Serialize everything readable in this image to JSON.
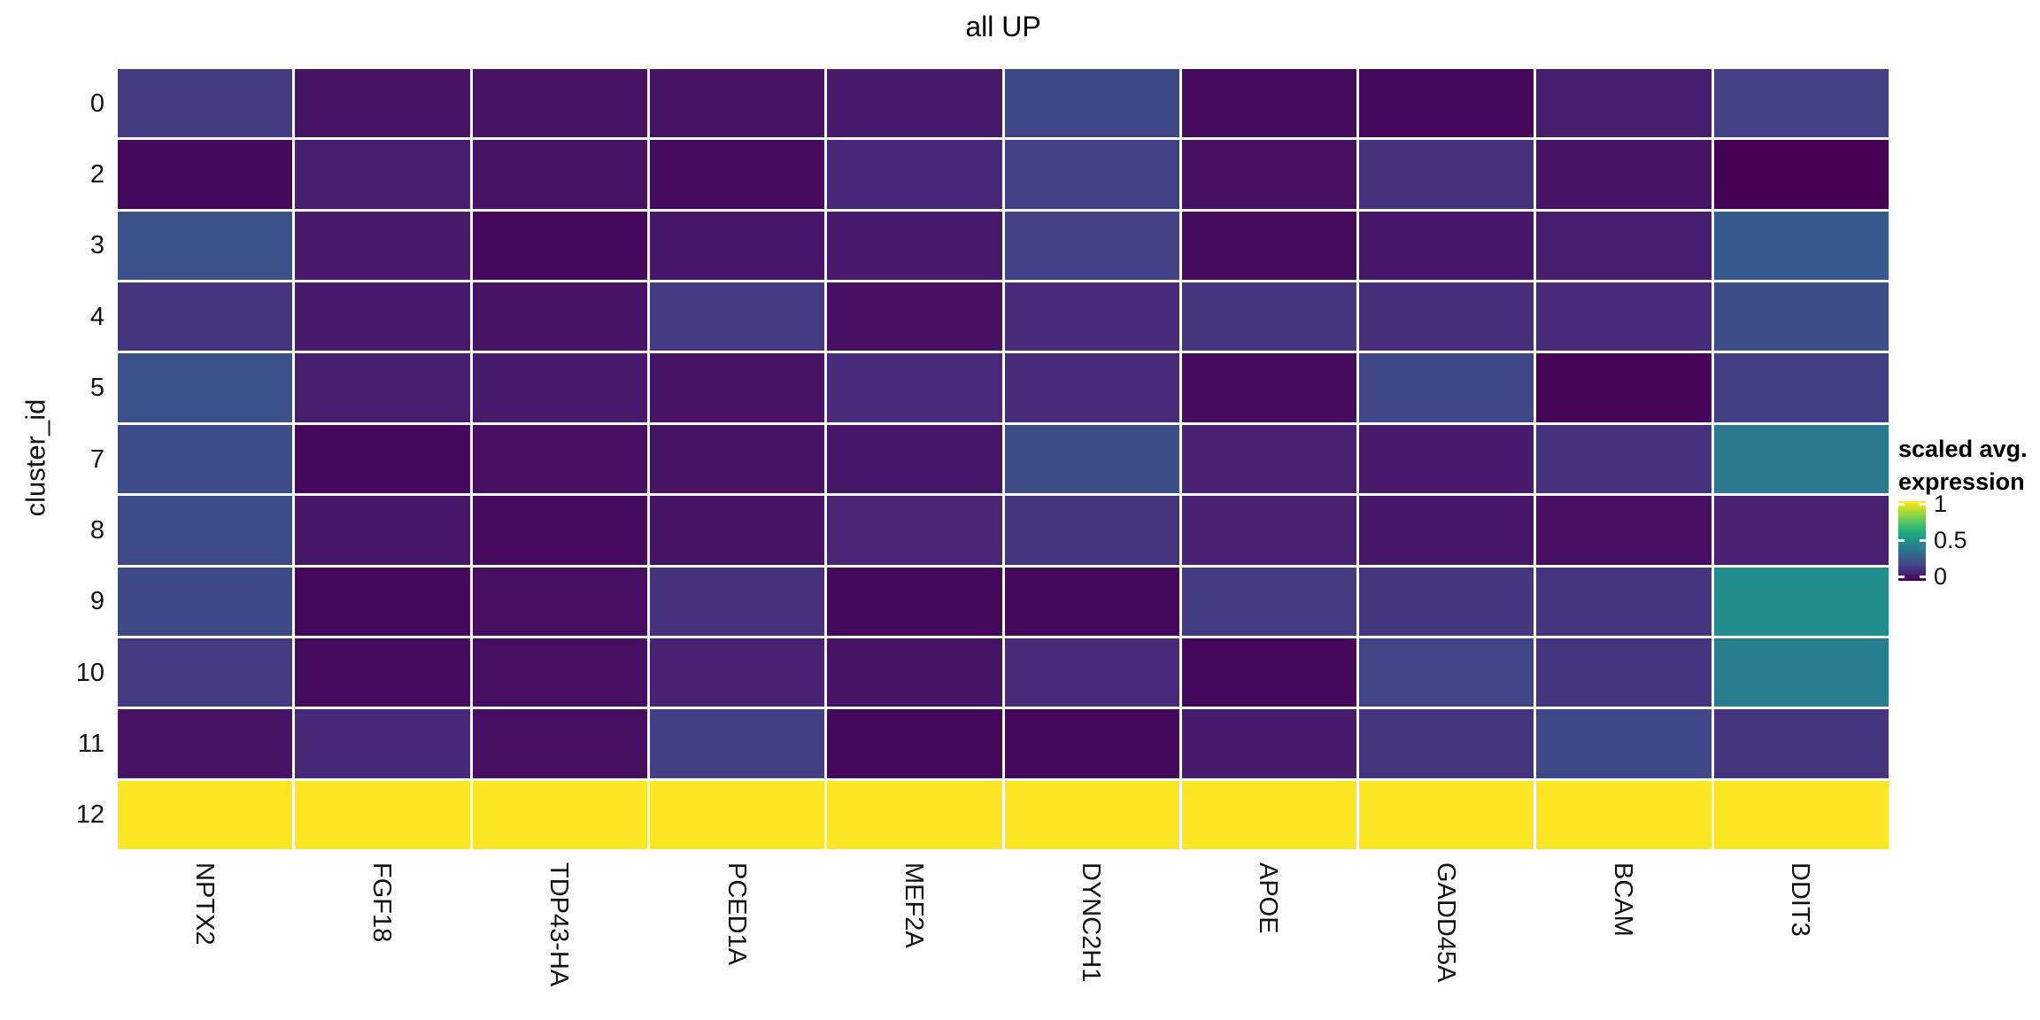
{
  "title": "all UP",
  "y_axis": {
    "label": "cluster_id",
    "ticks": [
      "0",
      "2",
      "3",
      "4",
      "5",
      "7",
      "8",
      "9",
      "10",
      "11",
      "12"
    ]
  },
  "x_axis": {
    "ticks": [
      "NPTX2",
      "FGF18",
      "TDP43-HA",
      "PCED1A",
      "MEF2A",
      "DYNC2H1",
      "APOE",
      "GADD45A",
      "BCAM",
      "DDIT3"
    ]
  },
  "legend": {
    "title_line1": "scaled avg.",
    "title_line2": "expression",
    "ticks": [
      "1",
      "0.5",
      "0"
    ],
    "tick_values": [
      1,
      0.5,
      0
    ]
  },
  "colors": {
    "background": "#ffffff",
    "grid_gap": "#ffffff",
    "axis_text": "#111111",
    "viridis_stops": [
      "#440154",
      "#482475",
      "#414487",
      "#355f8d",
      "#2a788e",
      "#21918c",
      "#22a884",
      "#44bf70",
      "#7ad151",
      "#bddf26",
      "#fde725"
    ]
  },
  "chart_data": {
    "type": "heatmap",
    "title": "all UP",
    "xlabel": "",
    "ylabel": "cluster_id",
    "x_categories": [
      "NPTX2",
      "FGF18",
      "TDP43-HA",
      "PCED1A",
      "MEF2A",
      "DYNC2H1",
      "APOE",
      "GADD45A",
      "BCAM",
      "DDIT3"
    ],
    "y_categories": [
      "0",
      "2",
      "3",
      "4",
      "5",
      "7",
      "8",
      "9",
      "10",
      "11",
      "12"
    ],
    "colormap": "viridis",
    "legend_title": "scaled avg. expression",
    "value_range": [
      0,
      1
    ],
    "values": [
      [
        0.17,
        0.05,
        0.05,
        0.05,
        0.07,
        0.21,
        0.03,
        0.02,
        0.08,
        0.19
      ],
      [
        0.02,
        0.08,
        0.05,
        0.03,
        0.11,
        0.19,
        0.04,
        0.14,
        0.05,
        0.0
      ],
      [
        0.25,
        0.07,
        0.02,
        0.06,
        0.07,
        0.19,
        0.03,
        0.06,
        0.08,
        0.28
      ],
      [
        0.15,
        0.07,
        0.05,
        0.17,
        0.04,
        0.12,
        0.16,
        0.13,
        0.12,
        0.24
      ],
      [
        0.25,
        0.08,
        0.07,
        0.05,
        0.12,
        0.12,
        0.03,
        0.21,
        0.01,
        0.18
      ],
      [
        0.23,
        0.02,
        0.04,
        0.05,
        0.06,
        0.24,
        0.09,
        0.07,
        0.14,
        0.4
      ],
      [
        0.23,
        0.06,
        0.03,
        0.05,
        0.1,
        0.15,
        0.09,
        0.06,
        0.04,
        0.09
      ],
      [
        0.22,
        0.02,
        0.04,
        0.14,
        0.02,
        0.02,
        0.17,
        0.16,
        0.15,
        0.48
      ],
      [
        0.17,
        0.03,
        0.04,
        0.09,
        0.05,
        0.12,
        0.02,
        0.2,
        0.15,
        0.42
      ],
      [
        0.05,
        0.11,
        0.04,
        0.18,
        0.02,
        0.02,
        0.07,
        0.15,
        0.22,
        0.15
      ],
      [
        1,
        1,
        1,
        1,
        1,
        1,
        1,
        1,
        1,
        1
      ]
    ]
  }
}
